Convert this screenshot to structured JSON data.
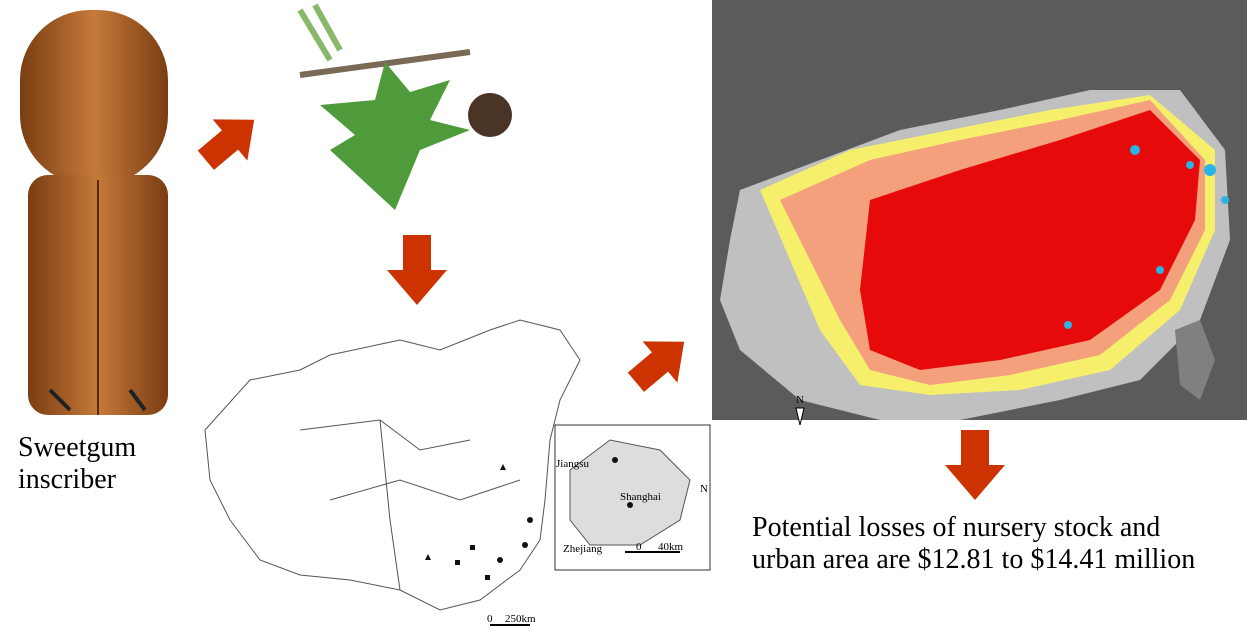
{
  "beetle": {
    "caption": "Sweetgum inscriber"
  },
  "distribution_map": {
    "inset_labels": [
      "Jiangsu",
      "Shanghai",
      "Zhejiang"
    ],
    "north": "N",
    "scale_zero": "0",
    "scale_length": "250km",
    "inset_scale_zero": "0",
    "inset_scale_length": "40km"
  },
  "risk_map": {
    "north": "N"
  },
  "conclusion": "Potential losses of nursery stock and urban area are $12.81 to $14.41 million"
}
